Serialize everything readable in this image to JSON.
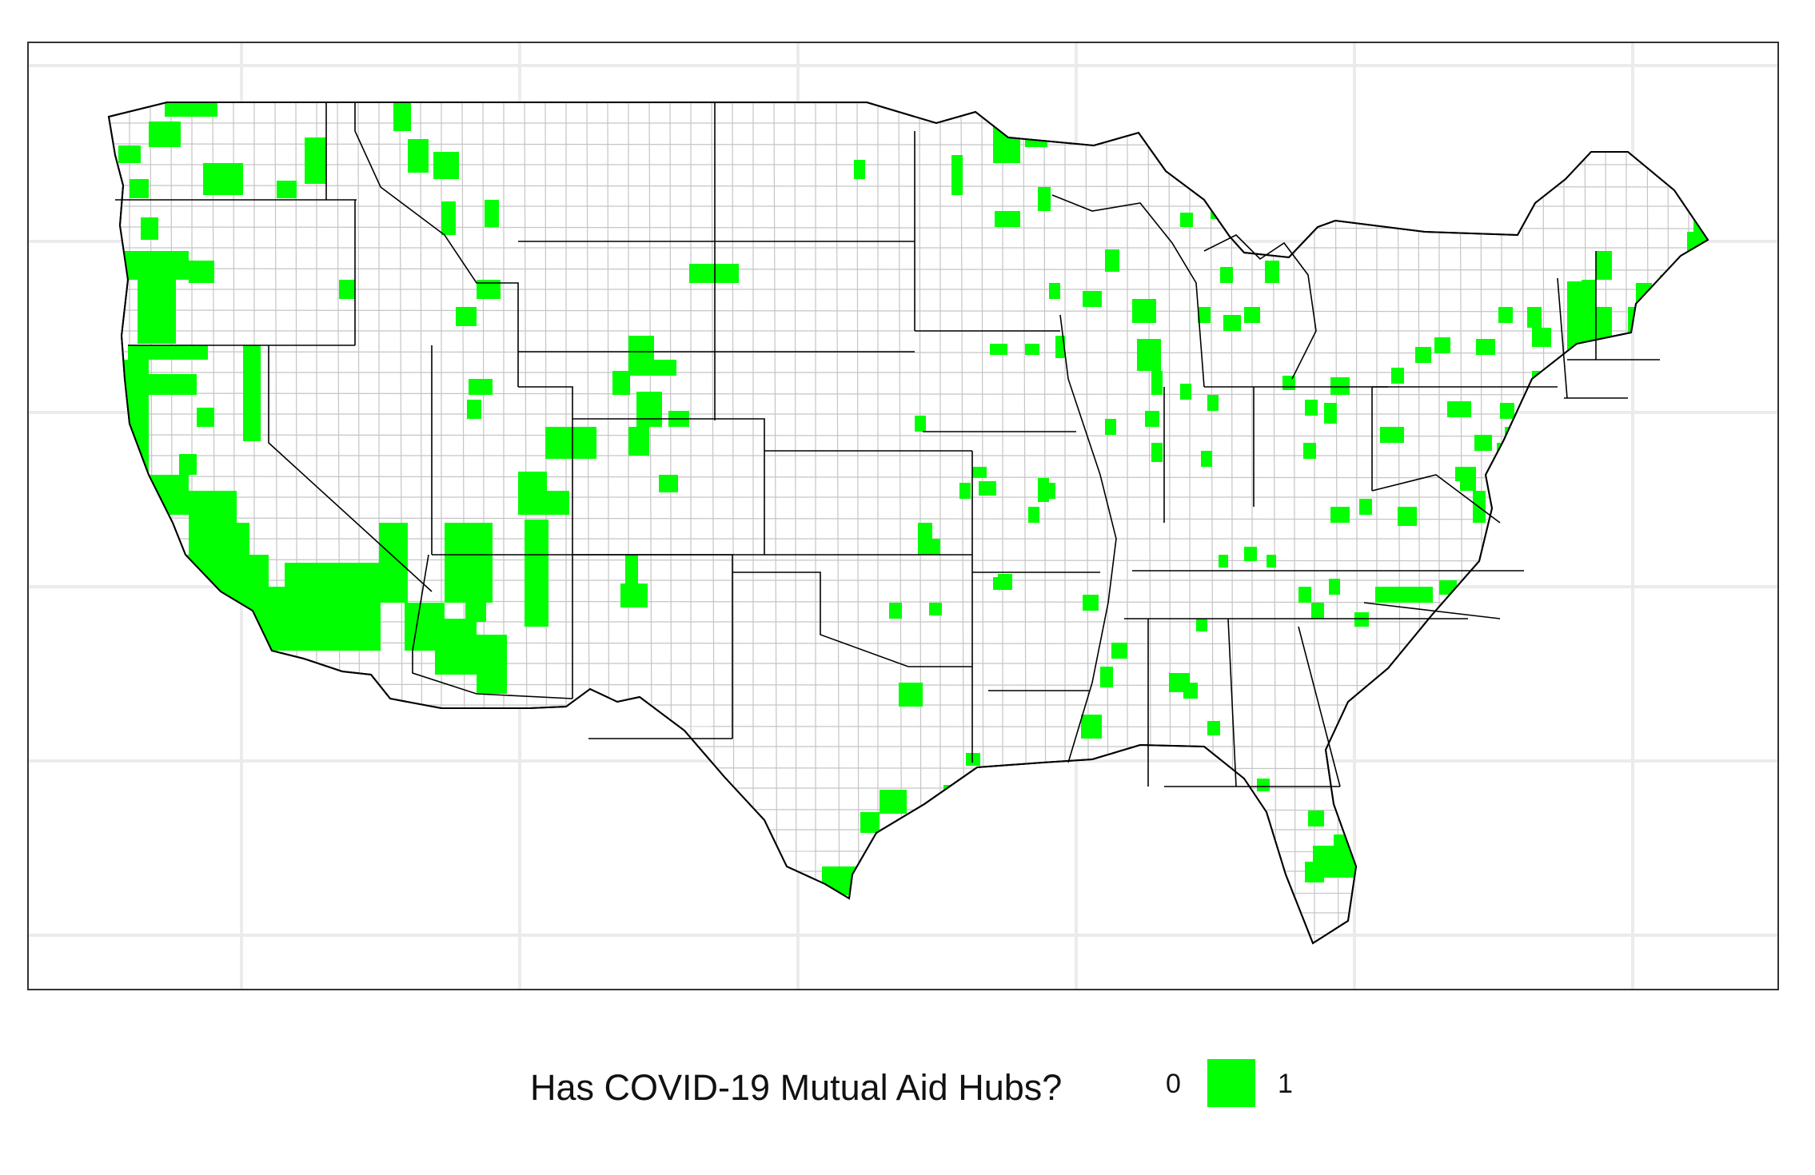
{
  "legend": {
    "title": "Has COVID-19 Mutual Aid Hubs?",
    "levels": [
      {
        "label": "0",
        "color": "#ffffff"
      },
      {
        "label": "1",
        "color": "#00ff00"
      }
    ]
  },
  "colors": {
    "hub": "#00ff00",
    "no_hub": "#ffffff",
    "state_border": "#000000",
    "county_border": "#bfbfbf",
    "grid": "#ebebeb",
    "panel_border": "#333333"
  }
}
